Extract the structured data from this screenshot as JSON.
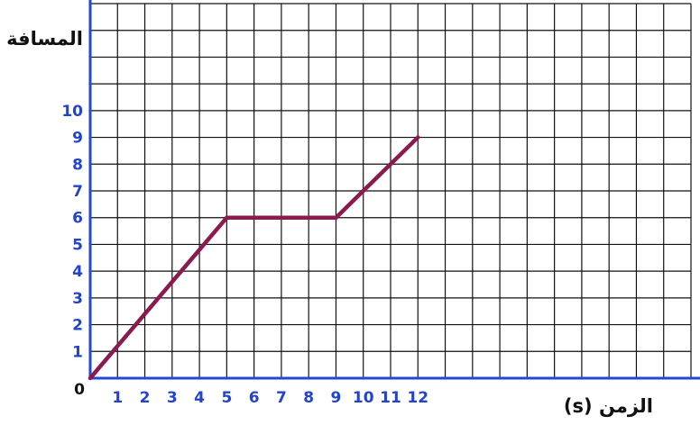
{
  "chart_data": {
    "type": "line",
    "title": "",
    "xlabel": "الزمن (s)",
    "ylabel": "المسافة",
    "x_ticks": [
      "1",
      "2",
      "3",
      "4",
      "5",
      "6",
      "7",
      "8",
      "9",
      "10",
      "11",
      "12"
    ],
    "y_ticks": [
      "1",
      "2",
      "3",
      "4",
      "5",
      "6",
      "7",
      "8",
      "9",
      "10"
    ],
    "origin_label": "0",
    "xlim": [
      0,
      22
    ],
    "ylim": [
      0,
      14
    ],
    "grid": true,
    "series": [
      {
        "x": [
          0,
          5,
          9,
          12
        ],
        "y": [
          0,
          6,
          6,
          9
        ]
      }
    ],
    "colors": {
      "line": "#8b1a4e",
      "axis": "#1f49d6",
      "grid": "#111111",
      "tick_labels": "#2244cc"
    }
  }
}
